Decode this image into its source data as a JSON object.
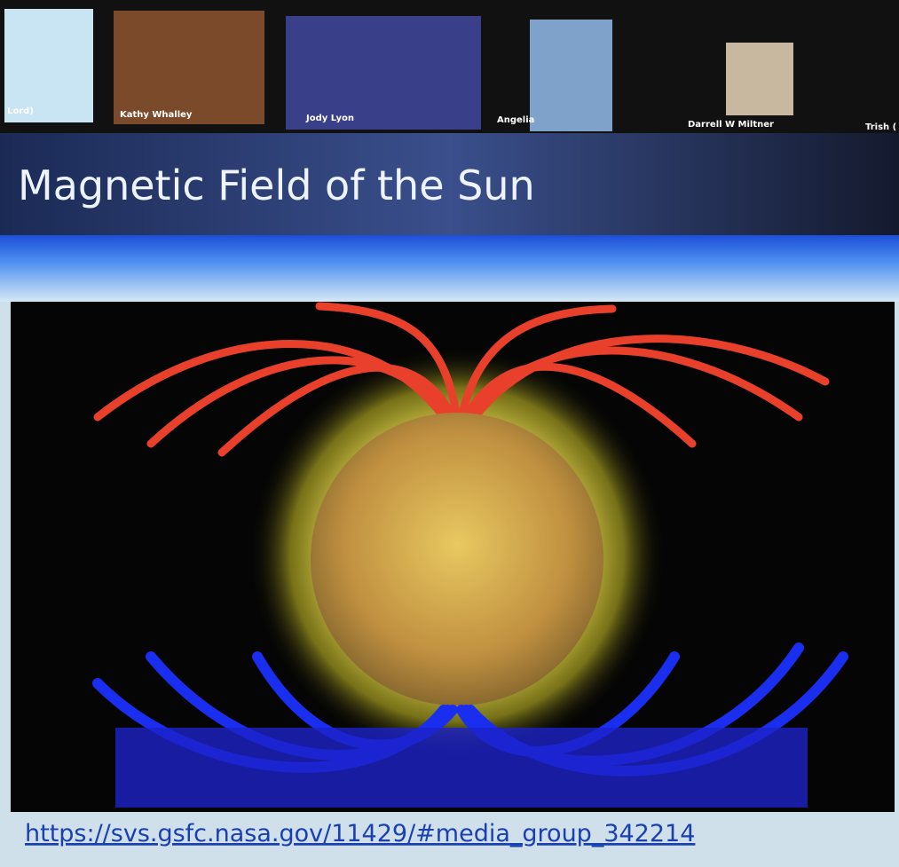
{
  "participants": [
    {
      "name": "Lord)"
    },
    {
      "name": "Kathy Whalley"
    },
    {
      "name": "Jody Lyon"
    },
    {
      "name": "Angelia"
    },
    {
      "name": "Darrell W Miltner"
    },
    {
      "name": "Trish ("
    }
  ],
  "slide": {
    "title": "Magnetic Field of the Sun",
    "link": "https://svs.gsfc.nasa.gov/11429/#media_group_342214"
  }
}
